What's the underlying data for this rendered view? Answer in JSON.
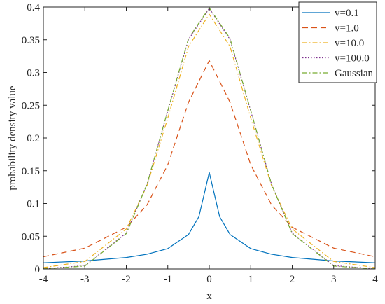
{
  "chart_data": {
    "type": "line",
    "xlabel": "x",
    "ylabel": "probability density value",
    "xlim": [
      -4,
      4
    ],
    "ylim": [
      0,
      0.4
    ],
    "xticks": [
      "-4",
      "-3",
      "-2",
      "-1",
      "0",
      "1",
      "2",
      "3",
      "4"
    ],
    "yticks": [
      "0",
      "0.05",
      "0.1",
      "0.15",
      "0.2",
      "0.25",
      "0.3",
      "0.35",
      "0.4"
    ],
    "grid": false,
    "legend_position": "top-right",
    "series": [
      {
        "name": "v=0.1",
        "color": "#0072bd",
        "dash": "solid",
        "x": [
          -4,
          -3,
          -2,
          -1.5,
          -1,
          -0.5,
          -0.25,
          0,
          0.25,
          0.5,
          1,
          1.5,
          2,
          3,
          4
        ],
        "y": [
          0.0094,
          0.0122,
          0.0175,
          0.0225,
          0.0311,
          0.0527,
          0.0799,
          0.1474,
          0.0799,
          0.0527,
          0.0311,
          0.0225,
          0.0175,
          0.0122,
          0.0094
        ]
      },
      {
        "name": "v=1.0",
        "color": "#d95319",
        "dash": "dashed",
        "x": [
          -4,
          -3,
          -2,
          -1.5,
          -1,
          -0.5,
          0,
          0.5,
          1,
          1.5,
          2,
          3,
          4
        ],
        "y": [
          0.0187,
          0.0318,
          0.0637,
          0.0979,
          0.1592,
          0.2546,
          0.3183,
          0.2546,
          0.1592,
          0.0979,
          0.0637,
          0.0318,
          0.0187
        ]
      },
      {
        "name": "v=10.0",
        "color": "#edb120",
        "dash": "dashdot",
        "x": [
          -4,
          -3,
          -2,
          -1.5,
          -1,
          -0.5,
          0,
          0.5,
          1,
          1.5,
          2,
          3,
          4
        ],
        "y": [
          0.002,
          0.0114,
          0.0611,
          0.1274,
          0.2304,
          0.3397,
          0.3891,
          0.3397,
          0.2304,
          0.1274,
          0.0611,
          0.0114,
          0.002
        ]
      },
      {
        "name": "v=100.0",
        "color": "#7e2f8e",
        "dash": "dotted",
        "x": [
          -4,
          -3,
          -2,
          -1.5,
          -1,
          -0.5,
          0,
          0.5,
          1,
          1.5,
          2,
          3,
          4
        ],
        "y": [
          0.0002,
          0.0051,
          0.0549,
          0.1298,
          0.2411,
          0.3506,
          0.3979,
          0.3506,
          0.2411,
          0.1298,
          0.0549,
          0.0051,
          0.0002
        ]
      },
      {
        "name": "Gaussian",
        "color": "#77ac30",
        "dash": "dashdot",
        "x": [
          -4,
          -3,
          -2,
          -1.5,
          -1,
          -0.5,
          0,
          0.5,
          1,
          1.5,
          2,
          3,
          4
        ],
        "y": [
          0.0001,
          0.0044,
          0.054,
          0.1295,
          0.242,
          0.3521,
          0.3989,
          0.3521,
          0.242,
          0.1295,
          0.054,
          0.0044,
          0.0001
        ]
      }
    ]
  }
}
